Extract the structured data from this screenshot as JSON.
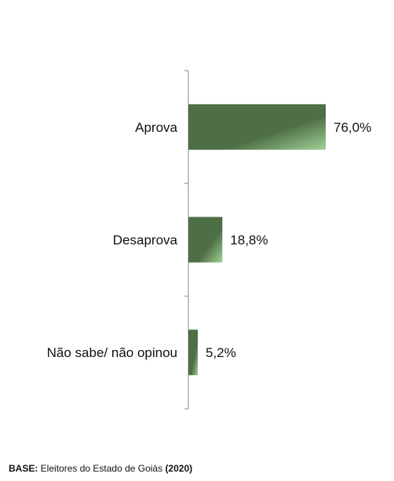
{
  "chart_data": {
    "type": "bar",
    "orientation": "horizontal",
    "categories": [
      "Aprova",
      "Desaprova",
      "Não sabe/ não opinou"
    ],
    "values": [
      76.0,
      18.8,
      5.2
    ],
    "value_labels": [
      "76,0%",
      "18,8%",
      "5,2%"
    ],
    "xlim": [
      0,
      100
    ],
    "grid": false,
    "bar_color": "#4e6e45",
    "bar_highlight": "#8fbf86"
  },
  "footnote": {
    "base_label": "BASE:",
    "base_text": " Eleitores do Estado de Goiás ",
    "year": "(2020)"
  }
}
